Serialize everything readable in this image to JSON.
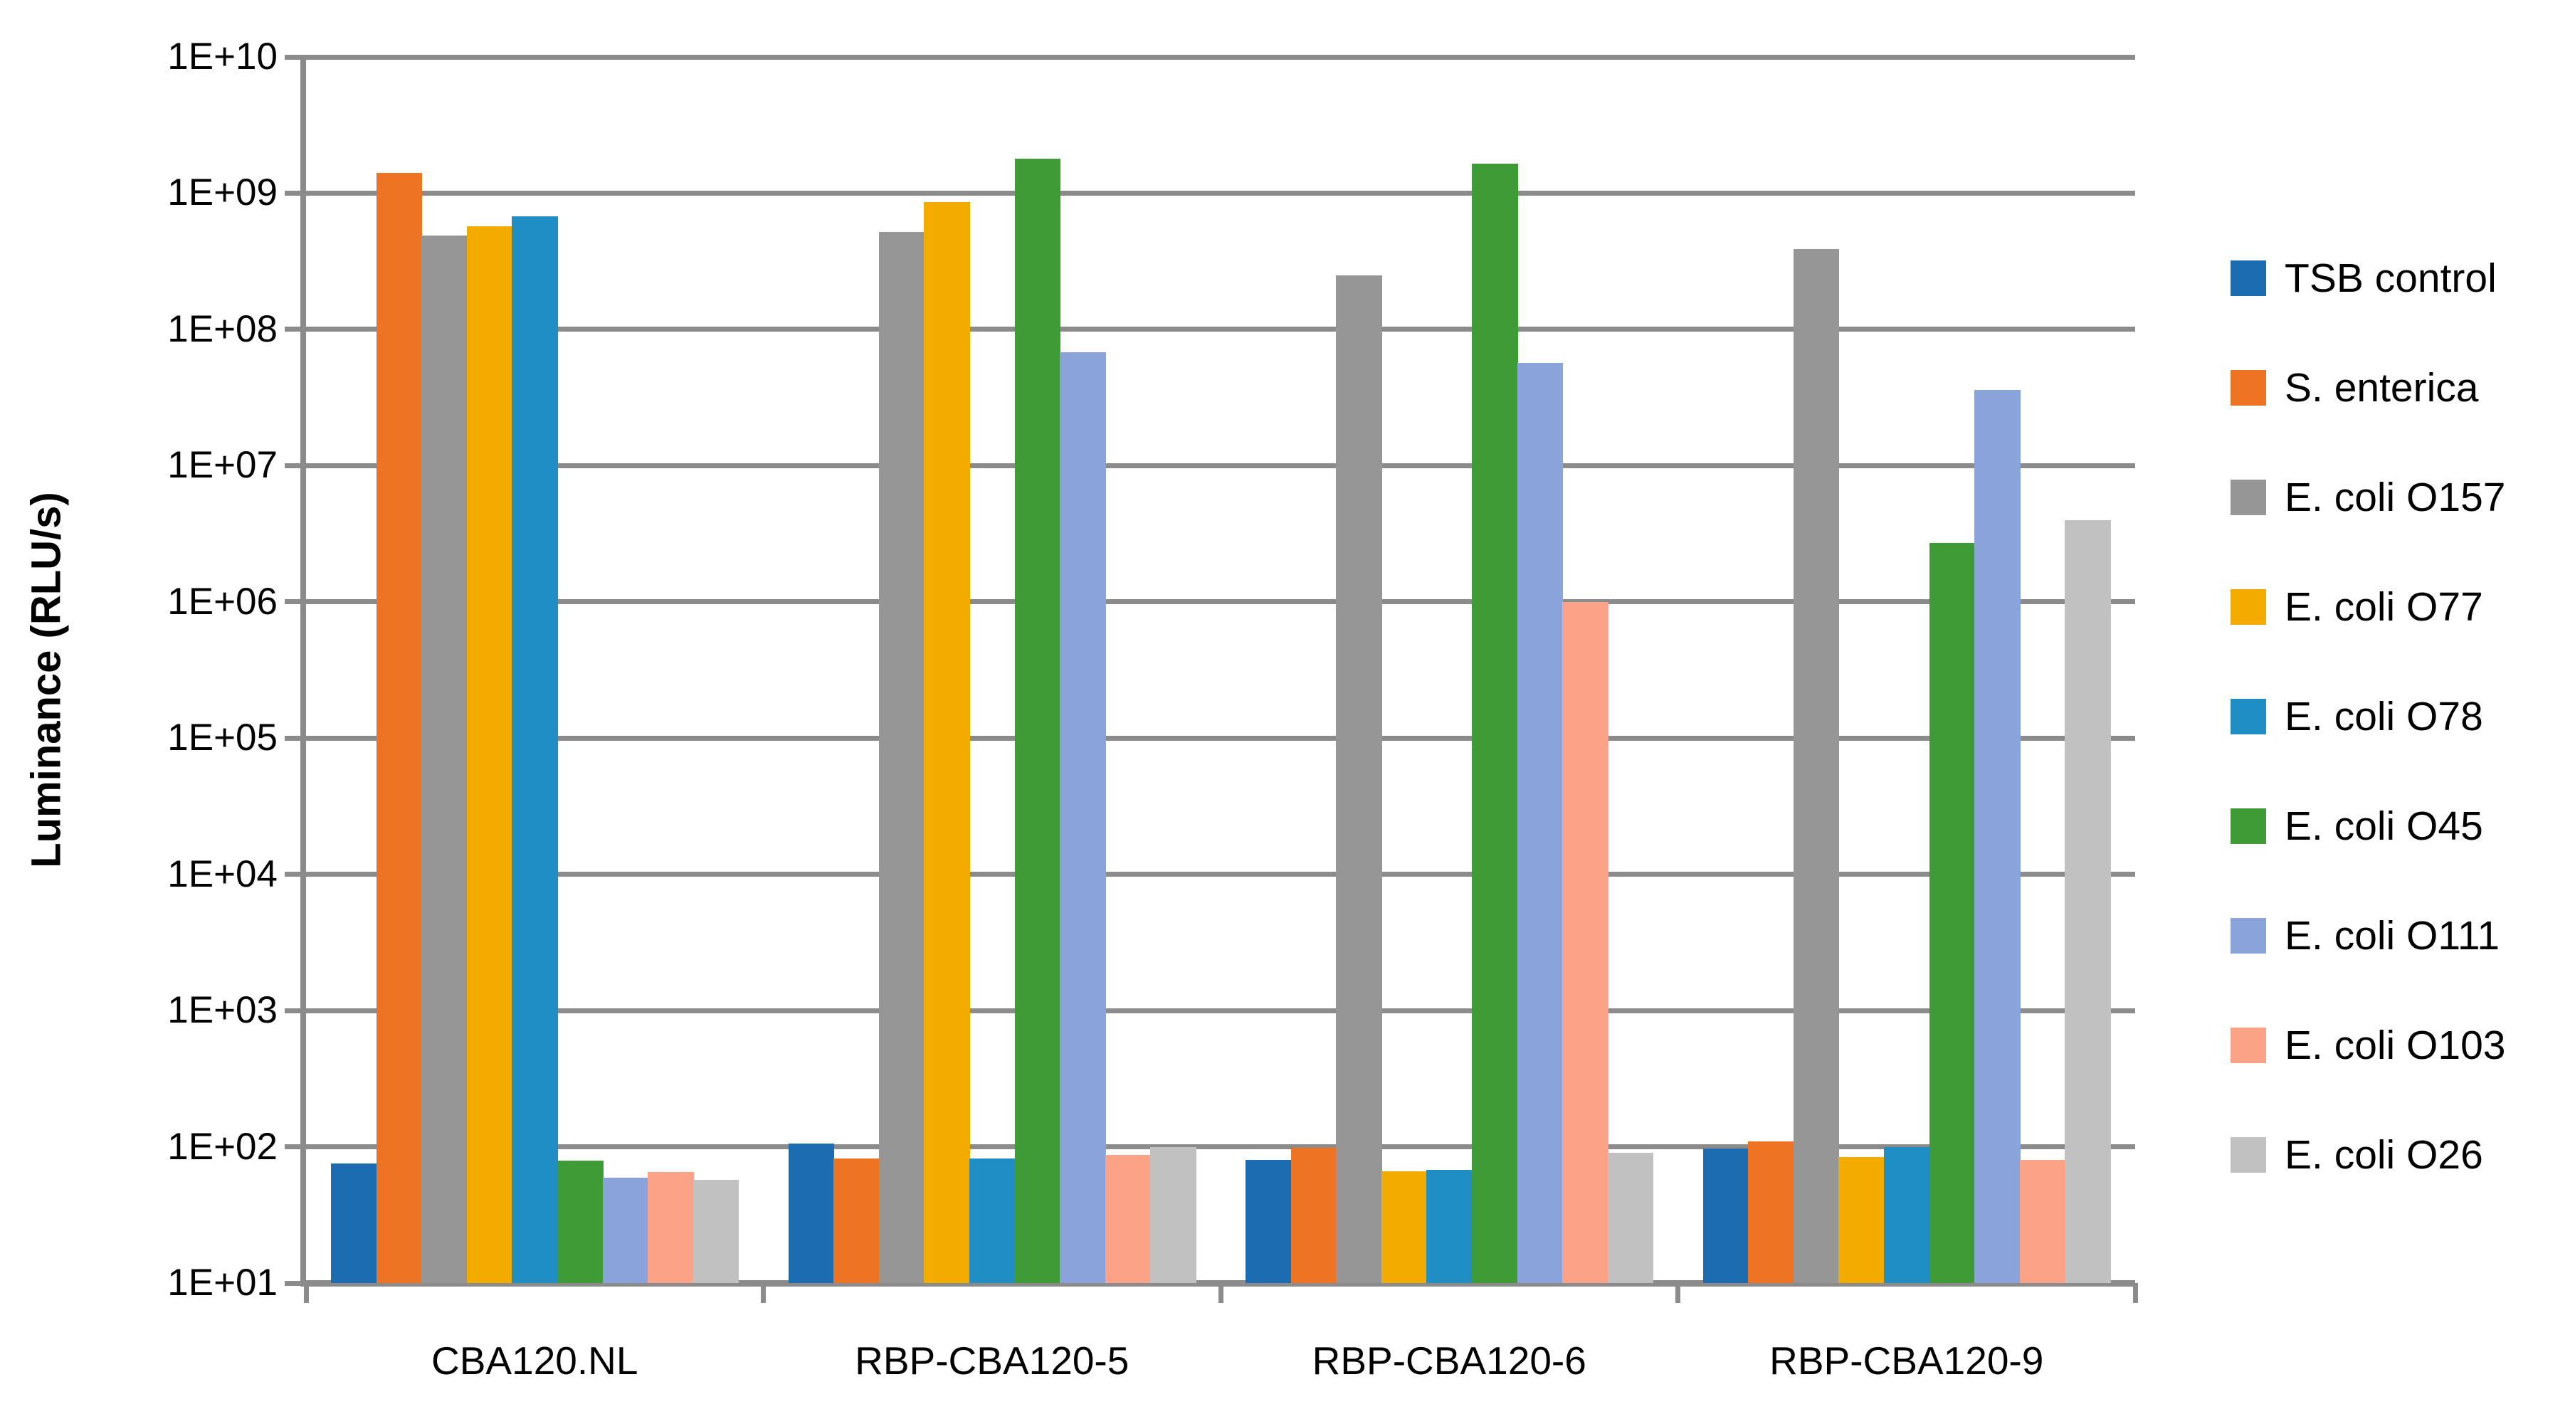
{
  "chart_data": {
    "type": "bar",
    "title": "",
    "xlabel": "",
    "ylabel": "Luminance (RLU/s)",
    "y_scale": "log10",
    "ylim": [
      10,
      10000000000
    ],
    "y_ticks": [
      "1E+10",
      "1E+09",
      "1E+08",
      "1E+07",
      "1E+06",
      "1E+05",
      "1E+04",
      "1E+03",
      "1E+02",
      "1E+01"
    ],
    "categories": [
      "CBA120.NL",
      "RBP-CBA120-5",
      "RBP-CBA120-6",
      "RBP-CBA120-9"
    ],
    "series": [
      {
        "name": "TSB control",
        "color": "#1B6CB1",
        "values": [
          75,
          105,
          80,
          97
        ]
      },
      {
        "name": "S. enterica",
        "color": "#EE7323",
        "values": [
          1400000000.0,
          82,
          98,
          110
        ]
      },
      {
        "name": "E. coli O157",
        "color": "#969696",
        "values": [
          490000000.0,
          520000000.0,
          250000000.0,
          390000000.0
        ]
      },
      {
        "name": "E. coli O77",
        "color": "#F2AC00",
        "values": [
          570000000.0,
          860000000.0,
          66,
          84
        ]
      },
      {
        "name": "E. coli O78",
        "color": "#1E8EC4",
        "values": [
          680000000.0,
          82,
          68,
          100
        ]
      },
      {
        "name": "E. coli O45",
        "color": "#3F9B35",
        "values": [
          79,
          1800000000.0,
          1650000000.0,
          2700000.0
        ]
      },
      {
        "name": "E. coli O111",
        "color": "#8BA3DB",
        "values": [
          59,
          68000000.0,
          57000000.0,
          36000000.0
        ]
      },
      {
        "name": "E. coli O103",
        "color": "#FCA287",
        "values": [
          65,
          87,
          1000000.0,
          80
        ]
      },
      {
        "name": "E. coli O26",
        "color": "#C1C1C1",
        "values": [
          57,
          100,
          90,
          4000000.0
        ]
      }
    ],
    "grid": "horizontal-only",
    "legend_position": "right"
  },
  "colors": {
    "background": "#FFFFFF",
    "gridline": "#8B8B8B",
    "axis": "#8B8B8B",
    "text": "#000000"
  }
}
